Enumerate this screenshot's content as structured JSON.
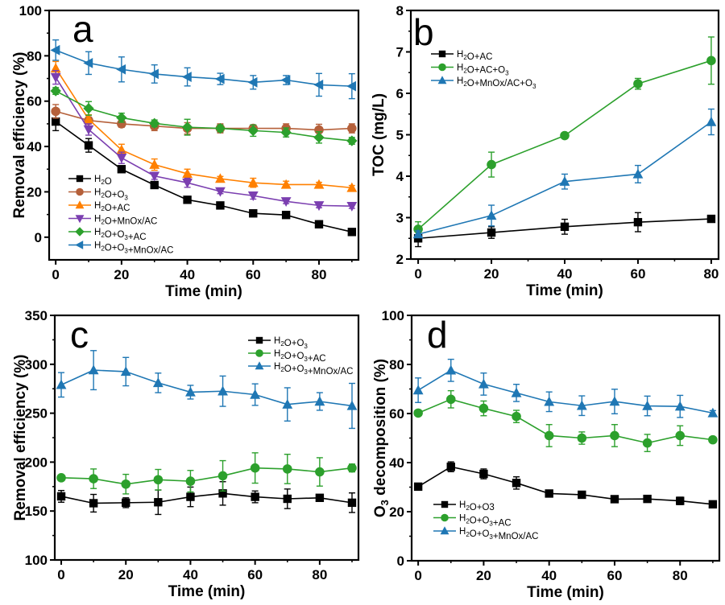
{
  "figure": {
    "panels": [
      "a",
      "b",
      "c",
      "d"
    ]
  },
  "chart_data": [
    {
      "panel": "a",
      "type": "line",
      "title": "",
      "xlabel": "Time (min)",
      "ylabel": "Removal efficiency (%)",
      "xlim": [
        -2,
        92
      ],
      "ylim": [
        -10,
        100
      ],
      "xticks": [
        0,
        20,
        40,
        60,
        80
      ],
      "yticks": [
        0,
        20,
        40,
        60,
        80,
        100
      ],
      "grid": false,
      "legend_position": "bottom-left",
      "x": [
        0,
        10,
        20,
        30,
        40,
        50,
        60,
        70,
        80,
        90
      ],
      "series": [
        {
          "name": "H2O",
          "legend": [
            {
              "t": "H"
            },
            {
              "t": "2",
              "sub": true
            },
            {
              "t": "O"
            }
          ],
          "color": "#000000",
          "marker": "square",
          "values": [
            51,
            40.5,
            30,
            23,
            16.5,
            14,
            10.5,
            9.8,
            5.7,
            2.3
          ],
          "errors": [
            4,
            3,
            1,
            1,
            1,
            1,
            1,
            1,
            1,
            1
          ]
        },
        {
          "name": "H2O+O3",
          "legend": [
            {
              "t": "H"
            },
            {
              "t": "2",
              "sub": true
            },
            {
              "t": "O+O"
            },
            {
              "t": "3",
              "sub": true
            }
          ],
          "color": "#b5603a",
          "marker": "circle",
          "values": [
            55.5,
            51.5,
            50,
            49,
            48,
            48,
            48,
            48,
            47.3,
            48
          ],
          "errors": [
            3,
            1.5,
            1.5,
            2,
            2.5,
            2,
            1.5,
            2,
            2.5,
            2
          ]
        },
        {
          "name": "H2O+AC",
          "legend": [
            {
              "t": "H"
            },
            {
              "t": "2",
              "sub": true
            },
            {
              "t": "O+AC"
            }
          ],
          "color": "#ff8000",
          "marker": "triangle-up",
          "values": [
            74.5,
            52,
            38.5,
            32,
            28,
            25.8,
            24,
            23.2,
            23.2,
            21.8
          ],
          "errors": [
            3,
            2,
            2.5,
            2.5,
            2,
            1,
            2,
            1.5,
            1,
            1
          ]
        },
        {
          "name": "H2O+MnOx/AC",
          "legend": [
            {
              "t": "H"
            },
            {
              "t": "2",
              "sub": true
            },
            {
              "t": "O+MnOx/AC"
            }
          ],
          "color": "#7b3fb0",
          "marker": "triangle-down",
          "values": [
            70.5,
            47.5,
            35,
            27,
            24,
            20.2,
            18.3,
            15.8,
            14,
            13.7
          ],
          "errors": [
            3,
            2.5,
            2.5,
            1.5,
            2,
            1,
            1.5,
            1,
            1,
            1
          ]
        },
        {
          "name": "H2O+O3+AC",
          "legend": [
            {
              "t": "H"
            },
            {
              "t": "2",
              "sub": true
            },
            {
              "t": "O+O"
            },
            {
              "t": "3",
              "sub": true
            },
            {
              "t": "+AC"
            }
          ],
          "color": "#2ca02c",
          "marker": "diamond",
          "values": [
            64.5,
            56.8,
            52.7,
            50.2,
            48.5,
            48,
            47,
            46.2,
            44,
            42.5
          ],
          "errors": [
            1.5,
            3,
            2,
            1.5,
            3.5,
            1.5,
            2.5,
            2,
            2.5,
            1.5
          ]
        },
        {
          "name": "H2O+O3+MnOx/AC",
          "legend": [
            {
              "t": "H"
            },
            {
              "t": "2",
              "sub": true
            },
            {
              "t": "O+O"
            },
            {
              "t": "3",
              "sub": true
            },
            {
              "t": "+MnOx/AC"
            }
          ],
          "color": "#1f77b4",
          "marker": "triangle-left",
          "values": [
            82.5,
            76.8,
            74,
            72,
            70.7,
            69.8,
            68.3,
            69.3,
            67.2,
            66.6
          ],
          "errors": [
            4.5,
            5,
            5.5,
            4,
            4,
            2.5,
            3,
            2,
            5,
            5.5
          ]
        }
      ]
    },
    {
      "panel": "b",
      "type": "line",
      "title": "",
      "xlabel": "Time (min)",
      "ylabel": "TOC (mg/L)",
      "xlim": [
        -2,
        82
      ],
      "ylim": [
        2,
        8
      ],
      "xticks": [
        0,
        20,
        40,
        60,
        80
      ],
      "yticks": [
        2,
        3,
        4,
        5,
        6,
        7,
        8
      ],
      "grid": false,
      "legend_position": "top-left",
      "x": [
        0,
        20,
        40,
        60,
        80
      ],
      "series": [
        {
          "name": "H2O+AC",
          "legend": [
            {
              "t": "H"
            },
            {
              "t": "2",
              "sub": true
            },
            {
              "t": "O+AC"
            }
          ],
          "color": "#000000",
          "marker": "square",
          "values": [
            2.5,
            2.64,
            2.78,
            2.89,
            2.97
          ],
          "errors": [
            0.2,
            0.14,
            0.18,
            0.23,
            0.05
          ]
        },
        {
          "name": "H2O+AC+O3",
          "legend": [
            {
              "t": "H"
            },
            {
              "t": "2",
              "sub": true
            },
            {
              "t": "O+AC+O"
            },
            {
              "t": "3",
              "sub": true
            }
          ],
          "color": "#2ca02c",
          "marker": "circle",
          "values": [
            2.72,
            4.28,
            4.98,
            6.23,
            6.79
          ],
          "errors": [
            0.18,
            0.3,
            0.04,
            0.13,
            0.57
          ]
        },
        {
          "name": "H2O+MnOx/AC+O3",
          "legend": [
            {
              "t": "H"
            },
            {
              "t": "2",
              "sub": true
            },
            {
              "t": "O+MnOx/AC+O"
            },
            {
              "t": "3",
              "sub": true
            }
          ],
          "color": "#1f77b4",
          "marker": "triangle-up",
          "values": [
            2.6,
            3.05,
            3.87,
            4.05,
            5.31
          ],
          "errors": [
            0.08,
            0.25,
            0.18,
            0.21,
            0.31
          ]
        }
      ]
    },
    {
      "panel": "c",
      "type": "line",
      "title": "",
      "xlabel": "Time (min)",
      "ylabel": "Removal efficiency (%)",
      "xlim": [
        -2,
        92
      ],
      "ylim": [
        100,
        350
      ],
      "xticks": [
        0,
        20,
        40,
        60,
        80
      ],
      "yticks": [
        100,
        150,
        200,
        250,
        300,
        350
      ],
      "grid": false,
      "legend_position": "top-right",
      "x": [
        0,
        10,
        20,
        30,
        40,
        50,
        60,
        70,
        80,
        90
      ],
      "series": [
        {
          "name": "H2O+O3",
          "legend": [
            {
              "t": "H"
            },
            {
              "t": "2",
              "sub": true
            },
            {
              "t": "O+O"
            },
            {
              "t": "3",
              "sub": true
            }
          ],
          "color": "#000000",
          "marker": "square",
          "values": [
            165,
            158,
            158.5,
            159,
            164.5,
            168,
            164.5,
            162.5,
            163.5,
            158.5
          ],
          "errors": [
            6,
            9,
            5,
            12.5,
            10,
            12,
            6,
            10,
            2,
            10
          ]
        },
        {
          "name": "H2O+O3+AC",
          "legend": [
            {
              "t": "H"
            },
            {
              "t": "2",
              "sub": true
            },
            {
              "t": "O+O"
            },
            {
              "t": "3",
              "sub": true
            },
            {
              "t": "+AC"
            }
          ],
          "color": "#2ca02c",
          "marker": "circle",
          "values": [
            184,
            183,
            177.5,
            182,
            180.5,
            186,
            194,
            193,
            190,
            194
          ],
          "errors": [
            1.5,
            10,
            10,
            10.5,
            11,
            15.5,
            15.5,
            15,
            14.5,
            4
          ]
        },
        {
          "name": "H2O+O3+MnOx/AC",
          "legend": [
            {
              "t": "H"
            },
            {
              "t": "2",
              "sub": true
            },
            {
              "t": "O+O"
            },
            {
              "t": "3",
              "sub": true
            },
            {
              "t": "+MnOx/AC"
            }
          ],
          "color": "#1f77b4",
          "marker": "triangle-up",
          "values": [
            279,
            294,
            292.5,
            281,
            271.5,
            272.5,
            269,
            259,
            262,
            257.5
          ],
          "errors": [
            12.5,
            20,
            14.5,
            10,
            7,
            15.5,
            11,
            17,
            9,
            23
          ]
        }
      ]
    },
    {
      "panel": "d",
      "type": "line",
      "title": "",
      "xlabel": "Time (min)",
      "ylabel": "O3 decomposition (%)",
      "xlim": [
        -2,
        92
      ],
      "ylim": [
        0,
        100
      ],
      "xticks": [
        0,
        20,
        40,
        60,
        80
      ],
      "yticks": [
        0,
        20,
        40,
        60,
        80,
        100
      ],
      "grid": false,
      "legend_position": "bottom-left",
      "x": [
        0,
        10,
        20,
        30,
        40,
        50,
        60,
        70,
        80,
        90
      ],
      "series": [
        {
          "name": "H2O+O3",
          "legend": [
            {
              "t": "H"
            },
            {
              "t": "2",
              "sub": true
            },
            {
              "t": "O+O3"
            }
          ],
          "color": "#000000",
          "marker": "square",
          "values": [
            30.2,
            38.3,
            35.4,
            31.7,
            27.4,
            26.9,
            25.1,
            25.2,
            24.4,
            23
          ],
          "errors": [
            0.8,
            2,
            2,
            2.5,
            0.8,
            0.8,
            1.2,
            0.8,
            1.5,
            0.8
          ]
        },
        {
          "name": "H2O+O3+AC",
          "legend": [
            {
              "t": "H"
            },
            {
              "t": "2",
              "sub": true
            },
            {
              "t": "O+O"
            },
            {
              "t": "3",
              "sub": true
            },
            {
              "t": "+AC"
            }
          ],
          "color": "#2ca02c",
          "marker": "circle",
          "values": [
            60.2,
            65.8,
            62.1,
            58.8,
            51,
            50,
            51,
            48,
            51,
            49.3
          ],
          "errors": [
            0.8,
            3.5,
            3,
            2.5,
            4.5,
            2.5,
            4.5,
            3.5,
            4,
            0.8
          ]
        },
        {
          "name": "H2O+O3+MnOx/AC",
          "legend": [
            {
              "t": "H"
            },
            {
              "t": "2",
              "sub": true
            },
            {
              "t": "O+O"
            },
            {
              "t": "3",
              "sub": true
            },
            {
              "t": "+MnOx/AC"
            }
          ],
          "color": "#1f77b4",
          "marker": "triangle-up",
          "values": [
            69.5,
            77.6,
            72,
            68.4,
            64.8,
            63.2,
            64.9,
            63.1,
            62.9,
            60.2
          ],
          "errors": [
            5,
            4.5,
            4.5,
            3.5,
            4,
            4,
            5,
            4,
            4.5,
            1
          ]
        }
      ]
    }
  ]
}
